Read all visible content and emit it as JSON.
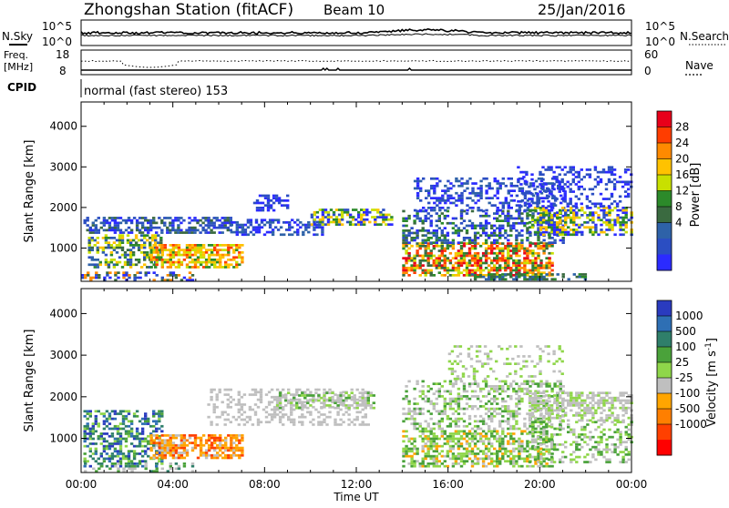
{
  "header": {
    "title": "Zhongshan Station (fitACF)",
    "beam": "Beam 10",
    "date": "25/Jan/2016"
  },
  "top_panels": {
    "nsky_label": "N.Sky",
    "nsearch_label": "N.Search",
    "nsky_ticks": [
      "10^5",
      "10^0"
    ],
    "nsearch_ticks": [
      "10^5",
      "10^0"
    ],
    "freq_label_1": "Freq.",
    "freq_label_2": "[MHz]",
    "freq_ticks": [
      "18",
      "8"
    ],
    "nave_label": "Nave",
    "nave_ticks": [
      "60",
      "0"
    ],
    "cpid_label": "CPID",
    "cpid_value": "normal (fast stereo) 153"
  },
  "chart_data": [
    {
      "type": "heatmap",
      "quantity": "Power",
      "ylabel": "Slant Range [km]",
      "xlabel": "Time UT",
      "y_ticks": [
        1000,
        2000,
        3000,
        4000
      ],
      "ylim": [
        180,
        4600
      ],
      "xlim": [
        0,
        24
      ],
      "x_tick_labels": [
        "00:00",
        "04:00",
        "08:00",
        "12:00",
        "16:00",
        "20:00",
        "00:00"
      ],
      "colorbar": {
        "label": "Power [dB]",
        "ticks": [
          "28",
          "24",
          "20",
          "16",
          "12",
          "8",
          "4"
        ],
        "colors": [
          "#e8001a",
          "#ff3d00",
          "#ff8a00",
          "#ffc200",
          "#c8e000",
          "#2c8a2a",
          "#3a6a40",
          "#2e62a8",
          "#2b4ec2",
          "#2b2bff"
        ]
      }
    },
    {
      "type": "heatmap",
      "quantity": "Velocity",
      "ylabel": "Slant Range [km]",
      "xlabel": "Time UT",
      "y_ticks": [
        1000,
        2000,
        3000,
        4000
      ],
      "ylim": [
        180,
        4600
      ],
      "xlim": [
        0,
        24
      ],
      "x_tick_labels": [
        "00:00",
        "04:00",
        "08:00",
        "12:00",
        "16:00",
        "20:00",
        "00:00"
      ],
      "colorbar": {
        "label": "Velocity [m s",
        "label_sup": "-1",
        "label_end": "]",
        "ticks": [
          "1000",
          "500",
          "100",
          "25",
          "-25",
          "-100",
          "-500",
          "-1000"
        ],
        "colors": [
          "#2a3bbf",
          "#2e6fb4",
          "#2f7f6a",
          "#4aa23a",
          "#8fd64a",
          "#bfbfbf",
          "#ffa500",
          "#ff7f00",
          "#ff4000",
          "#ff0000"
        ]
      }
    }
  ]
}
